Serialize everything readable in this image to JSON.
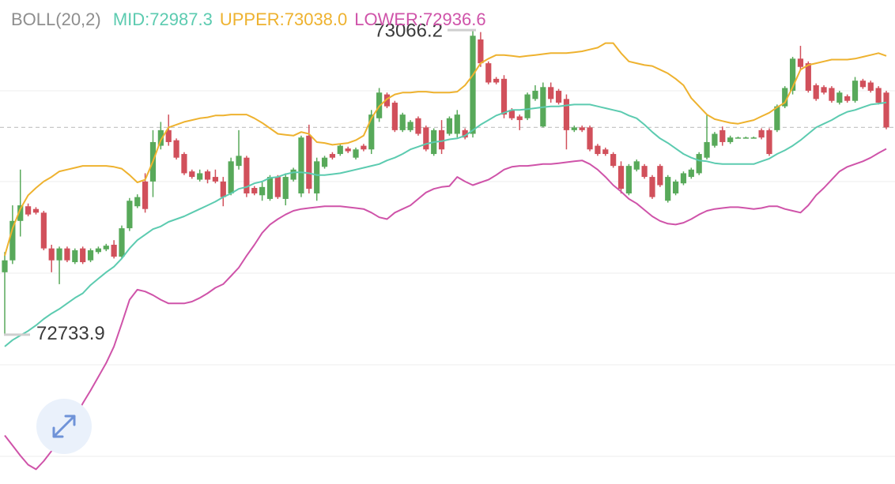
{
  "chart_data": {
    "type": "candlestick",
    "indicator": "BOLL(20,2)",
    "max_label": "73066.2",
    "min_label": "72733.9",
    "up_color": "#58a95a",
    "down_color": "#d1505b",
    "ylim": [
      72571,
      73099
    ],
    "open": [
      72802,
      72815,
      72858,
      72874,
      72871,
      72867,
      72828,
      72815,
      72828,
      72813,
      72828,
      72815,
      72824,
      72827,
      72832,
      72819,
      72850,
      72874,
      72901,
      72901,
      72940,
      72957,
      72946,
      72931,
      72912,
      72903,
      72912,
      72906,
      72901,
      72888,
      72918,
      72927,
      72894,
      72886,
      72882,
      72906,
      72882,
      72903,
      72888,
      72951,
      72888,
      72917,
      72931,
      72931,
      72937,
      72927,
      72940,
      72936,
      72970,
      72996,
      72987,
      72957,
      72957,
      72970,
      72960,
      72931,
      72957,
      72953,
      72953,
      72957,
      72953,
      73056,
      73030,
      73013,
      73013,
      72979,
      72972,
      72970,
      72991,
      72961,
      73004,
      73000,
      72991,
      72957,
      72960,
      72960,
      72940,
      72936,
      72931,
      72918,
      72888,
      72914,
      72918,
      72906,
      72918,
      72880,
      72888,
      72899,
      72906,
      72910,
      72927,
      72940,
      72957,
      72944,
      72949,
      72949,
      72949,
      72957,
      72957,
      72957,
      72983,
      73000,
      73035,
      73030,
      73006,
      73004,
      73003,
      72987,
      72994,
      72989,
      73011,
      73009,
      73003,
      72998
    ],
    "high": [
      72824,
      72875,
      72914,
      72877,
      72873,
      72869,
      72832,
      72830,
      72830,
      72828,
      72830,
      72828,
      72830,
      72833,
      72837,
      72853,
      72883,
      72887,
      72910,
      72957,
      72966,
      72974,
      72948,
      72933,
      72914,
      72914,
      72914,
      72914,
      72906,
      72927,
      72957,
      72929,
      72896,
      72901,
      72908,
      72908,
      72910,
      72916,
      72951,
      72963,
      72927,
      72929,
      72933,
      72942,
      72939,
      72938,
      72942,
      72979,
      73003,
      72998,
      72989,
      72976,
      72968,
      72972,
      72962,
      72959,
      72968,
      72972,
      72979,
      72959,
      73066.2,
      73064,
      73032,
      73015,
      73017,
      72981,
      72974,
      72998,
      73006,
      73009,
      73009,
      73002,
      72996,
      72962,
      72962,
      72962,
      72942,
      72938,
      72933,
      72923,
      72920,
      72925,
      72920,
      72908,
      72920,
      72908,
      72903,
      72912,
      72916,
      72933,
      72974,
      72955,
      72961,
      72951,
      72950,
      72950,
      72950,
      72959,
      72959,
      72985,
      73005,
      73037,
      73049,
      73032,
      73008,
      73006,
      73005,
      73000,
      72996,
      73015,
      73013,
      73011,
      73005,
      73000
    ],
    "low": [
      72733.9,
      72811,
      72841,
      72863,
      72865,
      72826,
      72802,
      72789,
      72813,
      72811,
      72811,
      72813,
      72822,
      72825,
      72817,
      72817,
      72847,
      72872,
      72867,
      72884,
      72936,
      72940,
      72925,
      72908,
      72904,
      72901,
      72899,
      72899,
      72874,
      72886,
      72914,
      72884,
      72886,
      72880,
      72880,
      72882,
      72875,
      72901,
      72884,
      72888,
      72880,
      72915,
      72925,
      72929,
      72932,
      72925,
      72934,
      72931,
      72966,
      72981,
      72955,
      72955,
      72955,
      72951,
      72934,
      72929,
      72931,
      72951,
      72949,
      72947,
      72949,
      73026,
      73007,
      73007,
      72970,
      72968,
      72957,
      72968,
      72989,
      72960,
      72987,
      72985,
      72936,
      72955,
      72955,
      72934,
      72929,
      72929,
      72916,
      72888,
      72886,
      72912,
      72904,
      72882,
      72895,
      72878,
      72886,
      72897,
      72904,
      72908,
      72925,
      72938,
      72940,
      72942,
      72948,
      72948,
      72948,
      72947,
      72929,
      72955,
      72981,
      72996,
      73022,
      72998,
      72989,
      72996,
      72987,
      72985,
      72987,
      72987,
      73002,
      72998,
      72985,
      72958
    ],
    "close": [
      72815,
      72858,
      72875,
      72865,
      72867,
      72828,
      72815,
      72828,
      72815,
      72826,
      72813,
      72826,
      72828,
      72831,
      72819,
      72850,
      72880,
      72884,
      72871,
      72944,
      72957,
      72944,
      72927,
      72910,
      72906,
      72910,
      72903,
      72901,
      72884,
      72923,
      72929,
      72888,
      72888,
      72895,
      72906,
      72884,
      72906,
      72914,
      72949,
      72893,
      72923,
      72927,
      72927,
      72940,
      72934,
      72936,
      72936,
      72974,
      72998,
      72983,
      72957,
      72974,
      72966,
      72953,
      72936,
      72957,
      72936,
      72970,
      72974,
      72949,
      73060,
      73030,
      73009,
      73009,
      72974,
      72970,
      72968,
      72996,
      73000,
      73004,
      72991,
      72987,
      72957,
      72960,
      72957,
      72936,
      72931,
      72931,
      72918,
      72893,
      72918,
      72923,
      72906,
      72884,
      72897,
      72906,
      72901,
      72910,
      72914,
      72931,
      72944,
      72953,
      72944,
      72949,
      72949,
      72949,
      72949,
      72949,
      72931,
      72983,
      73003,
      73035,
      73026,
      73000,
      72991,
      72998,
      72989,
      72998,
      72989,
      73011,
      73004,
      73000,
      72987,
      72960
    ],
    "series": [
      {
        "name": "MID:72987.3",
        "color": "#5ccbb0",
        "values": [
          72721,
          72728,
          72733,
          72738,
          72744,
          72751,
          72757,
          72762,
          72768,
          72774,
          72779,
          72788,
          72795,
          72802,
          72808,
          72817,
          72828,
          72837,
          72843,
          72849,
          72852,
          72857,
          72860,
          72863,
          72867,
          72871,
          72875,
          72879,
          72884,
          72888,
          72893,
          72895,
          72899,
          72901,
          72905,
          72906,
          72909,
          72911,
          72911,
          72910,
          72908,
          72908,
          72909,
          72910,
          72912,
          72914,
          72916,
          72918,
          72920,
          72924,
          72927,
          72931,
          72936,
          72939,
          72942,
          72944,
          72945,
          72947,
          72948,
          72951,
          72957,
          72963,
          72968,
          72973,
          72976,
          72979,
          72979,
          72980,
          72981,
          72982,
          72983,
          72983,
          72984,
          72985,
          72985,
          72985,
          72983,
          72981,
          72979,
          72977,
          72973,
          72970,
          72963,
          72955,
          72948,
          72943,
          72937,
          72931,
          72927,
          72924,
          72923,
          72921,
          72920,
          72920,
          72920,
          72920,
          72920,
          72923,
          72926,
          72931,
          72935,
          72940,
          72946,
          72953,
          72960,
          72964,
          72968,
          72973,
          72977,
          72979,
          72982,
          72985,
          72986,
          72987.3
        ]
      },
      {
        "name": "UPPER:73038.0",
        "color": "#eeb22f",
        "values": [
          72820,
          72850,
          72871,
          72886,
          72894,
          72901,
          72906,
          72912,
          72914,
          72916,
          72918,
          72918,
          72918,
          72918,
          72917,
          72915,
          72908,
          72900,
          72903,
          72923,
          72946,
          72960,
          72963,
          72966,
          72968,
          72970,
          72971,
          72973,
          72973,
          72974,
          72974,
          72974,
          72970,
          72965,
          72959,
          72953,
          72952,
          72951,
          72955,
          72953,
          72944,
          72943,
          72941,
          72942,
          72943,
          72946,
          72951,
          72970,
          72983,
          72991,
          72996,
          72998,
          72998,
          72999,
          72999,
          72998,
          72998,
          72998,
          72999,
          73006,
          73017,
          73030,
          73035,
          73039,
          73039,
          73038,
          73037,
          73038,
          73039,
          73040,
          73041,
          73041,
          73041,
          73042,
          73043,
          73045,
          73047,
          73052,
          73052,
          73041,
          73032,
          73030,
          73028,
          73027,
          73023,
          73019,
          73013,
          73006,
          72992,
          72983,
          72974,
          72969,
          72967,
          72965,
          72964,
          72966,
          72968,
          72972,
          72976,
          72982,
          72987,
          73004,
          73023,
          73028,
          73030,
          73032,
          73034,
          73034,
          73034,
          73035,
          73037,
          73039,
          73041,
          73038
        ]
      },
      {
        "name": "LOWER:72936.6",
        "color": "#cf53a9",
        "values": [
          72624,
          72613,
          72602,
          72592,
          72587,
          72596,
          72607,
          72616,
          72628,
          72643,
          72659,
          72673,
          72688,
          72703,
          72721,
          72746,
          72772,
          72783,
          72781,
          72777,
          72772,
          72768,
          72768,
          72768,
          72770,
          72774,
          72779,
          72785,
          72789,
          72798,
          72807,
          72820,
          72832,
          72845,
          72854,
          72860,
          72865,
          72869,
          72871,
          72872,
          72873,
          72874,
          72874,
          72874,
          72873,
          72872,
          72871,
          72867,
          72862,
          72860,
          72867,
          72871,
          72875,
          72882,
          72889,
          72893,
          72895,
          72896,
          72906,
          72901,
          72897,
          72900,
          72903,
          72908,
          72914,
          72917,
          72918,
          72918,
          72919,
          72920,
          72920,
          72921,
          72922,
          72923,
          72924,
          72920,
          72914,
          72906,
          72897,
          72890,
          72882,
          72877,
          72870,
          72863,
          72858,
          72855,
          72854,
          72856,
          72860,
          72865,
          72869,
          72871,
          72872,
          72873,
          72873,
          72872,
          72871,
          72872,
          72874,
          72874,
          72871,
          72869,
          72867,
          72875,
          72886,
          72894,
          72903,
          72912,
          72917,
          72920,
          72923,
          72927,
          72932,
          72936.6
        ]
      }
    ]
  }
}
